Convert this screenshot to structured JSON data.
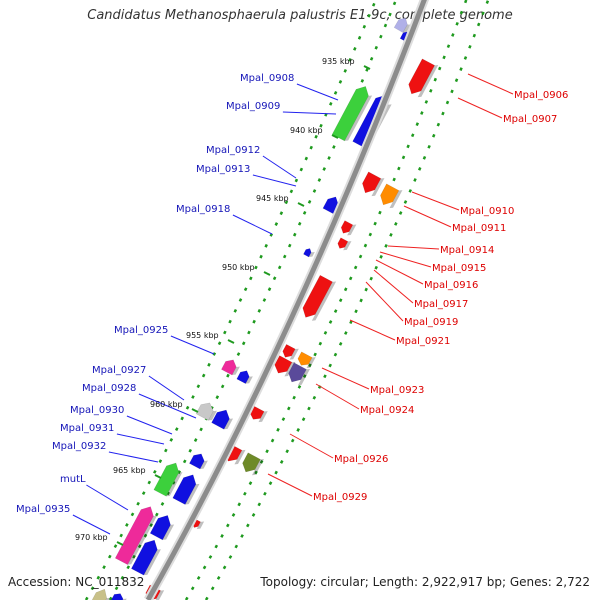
{
  "title": "Candidatus Methanosphaerula palustris E1-9c, complete genome",
  "footer": {
    "accession": "Accession: NC_011832",
    "topology": "Topology: circular; Length: 2,922,917 bp; Genes: 2,722"
  },
  "colors": {
    "backbone": "#8c8c8c",
    "left_label": "#1515b8",
    "right_label": "#dd0000",
    "left_line": "#2222ee",
    "right_line": "#ee2222",
    "tick_dots": "#1f9a1f",
    "blue": "#1010e0",
    "green": "#3cd03c",
    "red": "#ee1111",
    "orange": "#ff8c00",
    "purple": "#5a4a9a",
    "pink": "#ee2a9a",
    "gray": "#c8c8c8",
    "olive": "#6e8a28",
    "lavender": "#b0b0e8",
    "khaki": "#c8c088"
  },
  "scale_labels": [
    "935 kbp",
    "940 kbp",
    "945 kbp",
    "950 kbp",
    "955 kbp",
    "960 kbp",
    "965 kbp",
    "970 kbp"
  ],
  "left_genes": [
    "Mpal_0908",
    "Mpal_0909",
    "Mpal_0912",
    "Mpal_0913",
    "Mpal_0918",
    "Mpal_0925",
    "Mpal_0927",
    "Mpal_0928",
    "Mpal_0930",
    "Mpal_0931",
    "Mpal_0932",
    "mutL",
    "Mpal_0935"
  ],
  "right_genes": [
    "Mpal_0906",
    "Mpal_0907",
    "Mpal_0910",
    "Mpal_0911",
    "Mpal_0914",
    "Mpal_0915",
    "Mpal_0916",
    "Mpal_0917",
    "Mpal_0919",
    "Mpal_0921",
    "Mpal_0923",
    "Mpal_0924",
    "Mpal_0926",
    "Mpal_0929"
  ]
}
